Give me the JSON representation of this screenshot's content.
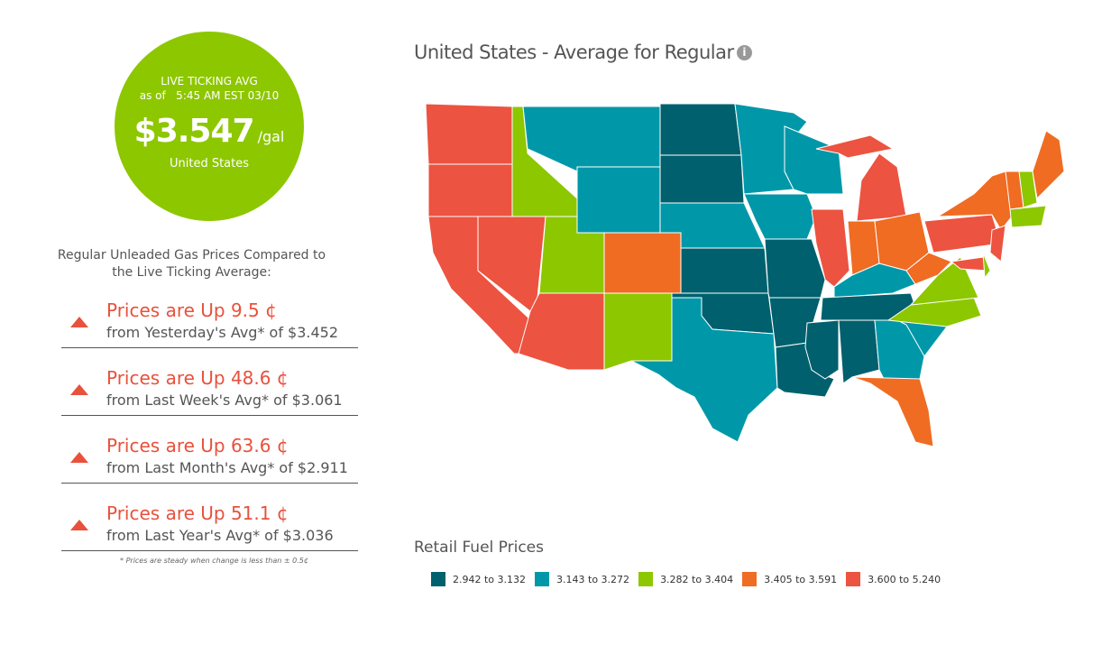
{
  "live": {
    "label": "LIVE TICKING AVG",
    "as_of": "as of   5:45 AM EST 03/10",
    "price": "$3.547",
    "unit": "/gal",
    "location": "United States"
  },
  "compare_heading": "Regular Unleaded Gas Prices Compared to the Live Ticking Average:",
  "changes": [
    {
      "headline": "Prices are Up 9.5 ¢",
      "detail": "from Yesterday's Avg* of $3.452"
    },
    {
      "headline": "Prices are Up 48.6 ¢",
      "detail": "from Last Week's Avg* of $3.061"
    },
    {
      "headline": "Prices are Up 63.6 ¢",
      "detail": "from Last Month's Avg* of $2.911"
    },
    {
      "headline": "Prices are Up 51.1 ¢",
      "detail": "from Last Year's Avg* of $3.036"
    }
  ],
  "footnote": "* Prices are steady when change is less than ± 0.5¢",
  "map_title": "United States - Average for Regular",
  "info_icon": "i",
  "legend": {
    "title": "Retail Fuel Prices",
    "bins": [
      {
        "label": "2.942 to 3.132",
        "color": "#00606e"
      },
      {
        "label": "3.143 to 3.272",
        "color": "#0098a8"
      },
      {
        "label": "3.282 to 3.404",
        "color": "#8dc700"
      },
      {
        "label": "3.405 to 3.591",
        "color": "#ef6c22"
      },
      {
        "label": "3.600 to 5.240",
        "color": "#ec5340"
      }
    ]
  },
  "states": {
    "WA": 4,
    "OR": 4,
    "CA": 4,
    "NV": 4,
    "AZ": 4,
    "ID": 2,
    "UT": 2,
    "NM": 2,
    "MT": 1,
    "WY": 1,
    "CO": 3,
    "ND": 0,
    "SD": 0,
    "NE": 1,
    "KS": 0,
    "OK": 0,
    "TX": 1,
    "MN": 1,
    "IA": 1,
    "MO": 0,
    "AR": 0,
    "LA": 0,
    "WI": 1,
    "IL": 4,
    "MI": 4,
    "MIU": 4,
    "IN": 3,
    "OH": 3,
    "KY": 1,
    "TN": 0,
    "MS": 0,
    "AL": 0,
    "GA": 1,
    "SC": 1,
    "NC": 2,
    "VA": 2,
    "WV": 3,
    "PA": 4,
    "NY": 3,
    "ME": 3,
    "VT": 3,
    "NH": 2,
    "MA": 2,
    "NJ": 4,
    "MD": 4,
    "DE": 2,
    "FL": 3
  }
}
